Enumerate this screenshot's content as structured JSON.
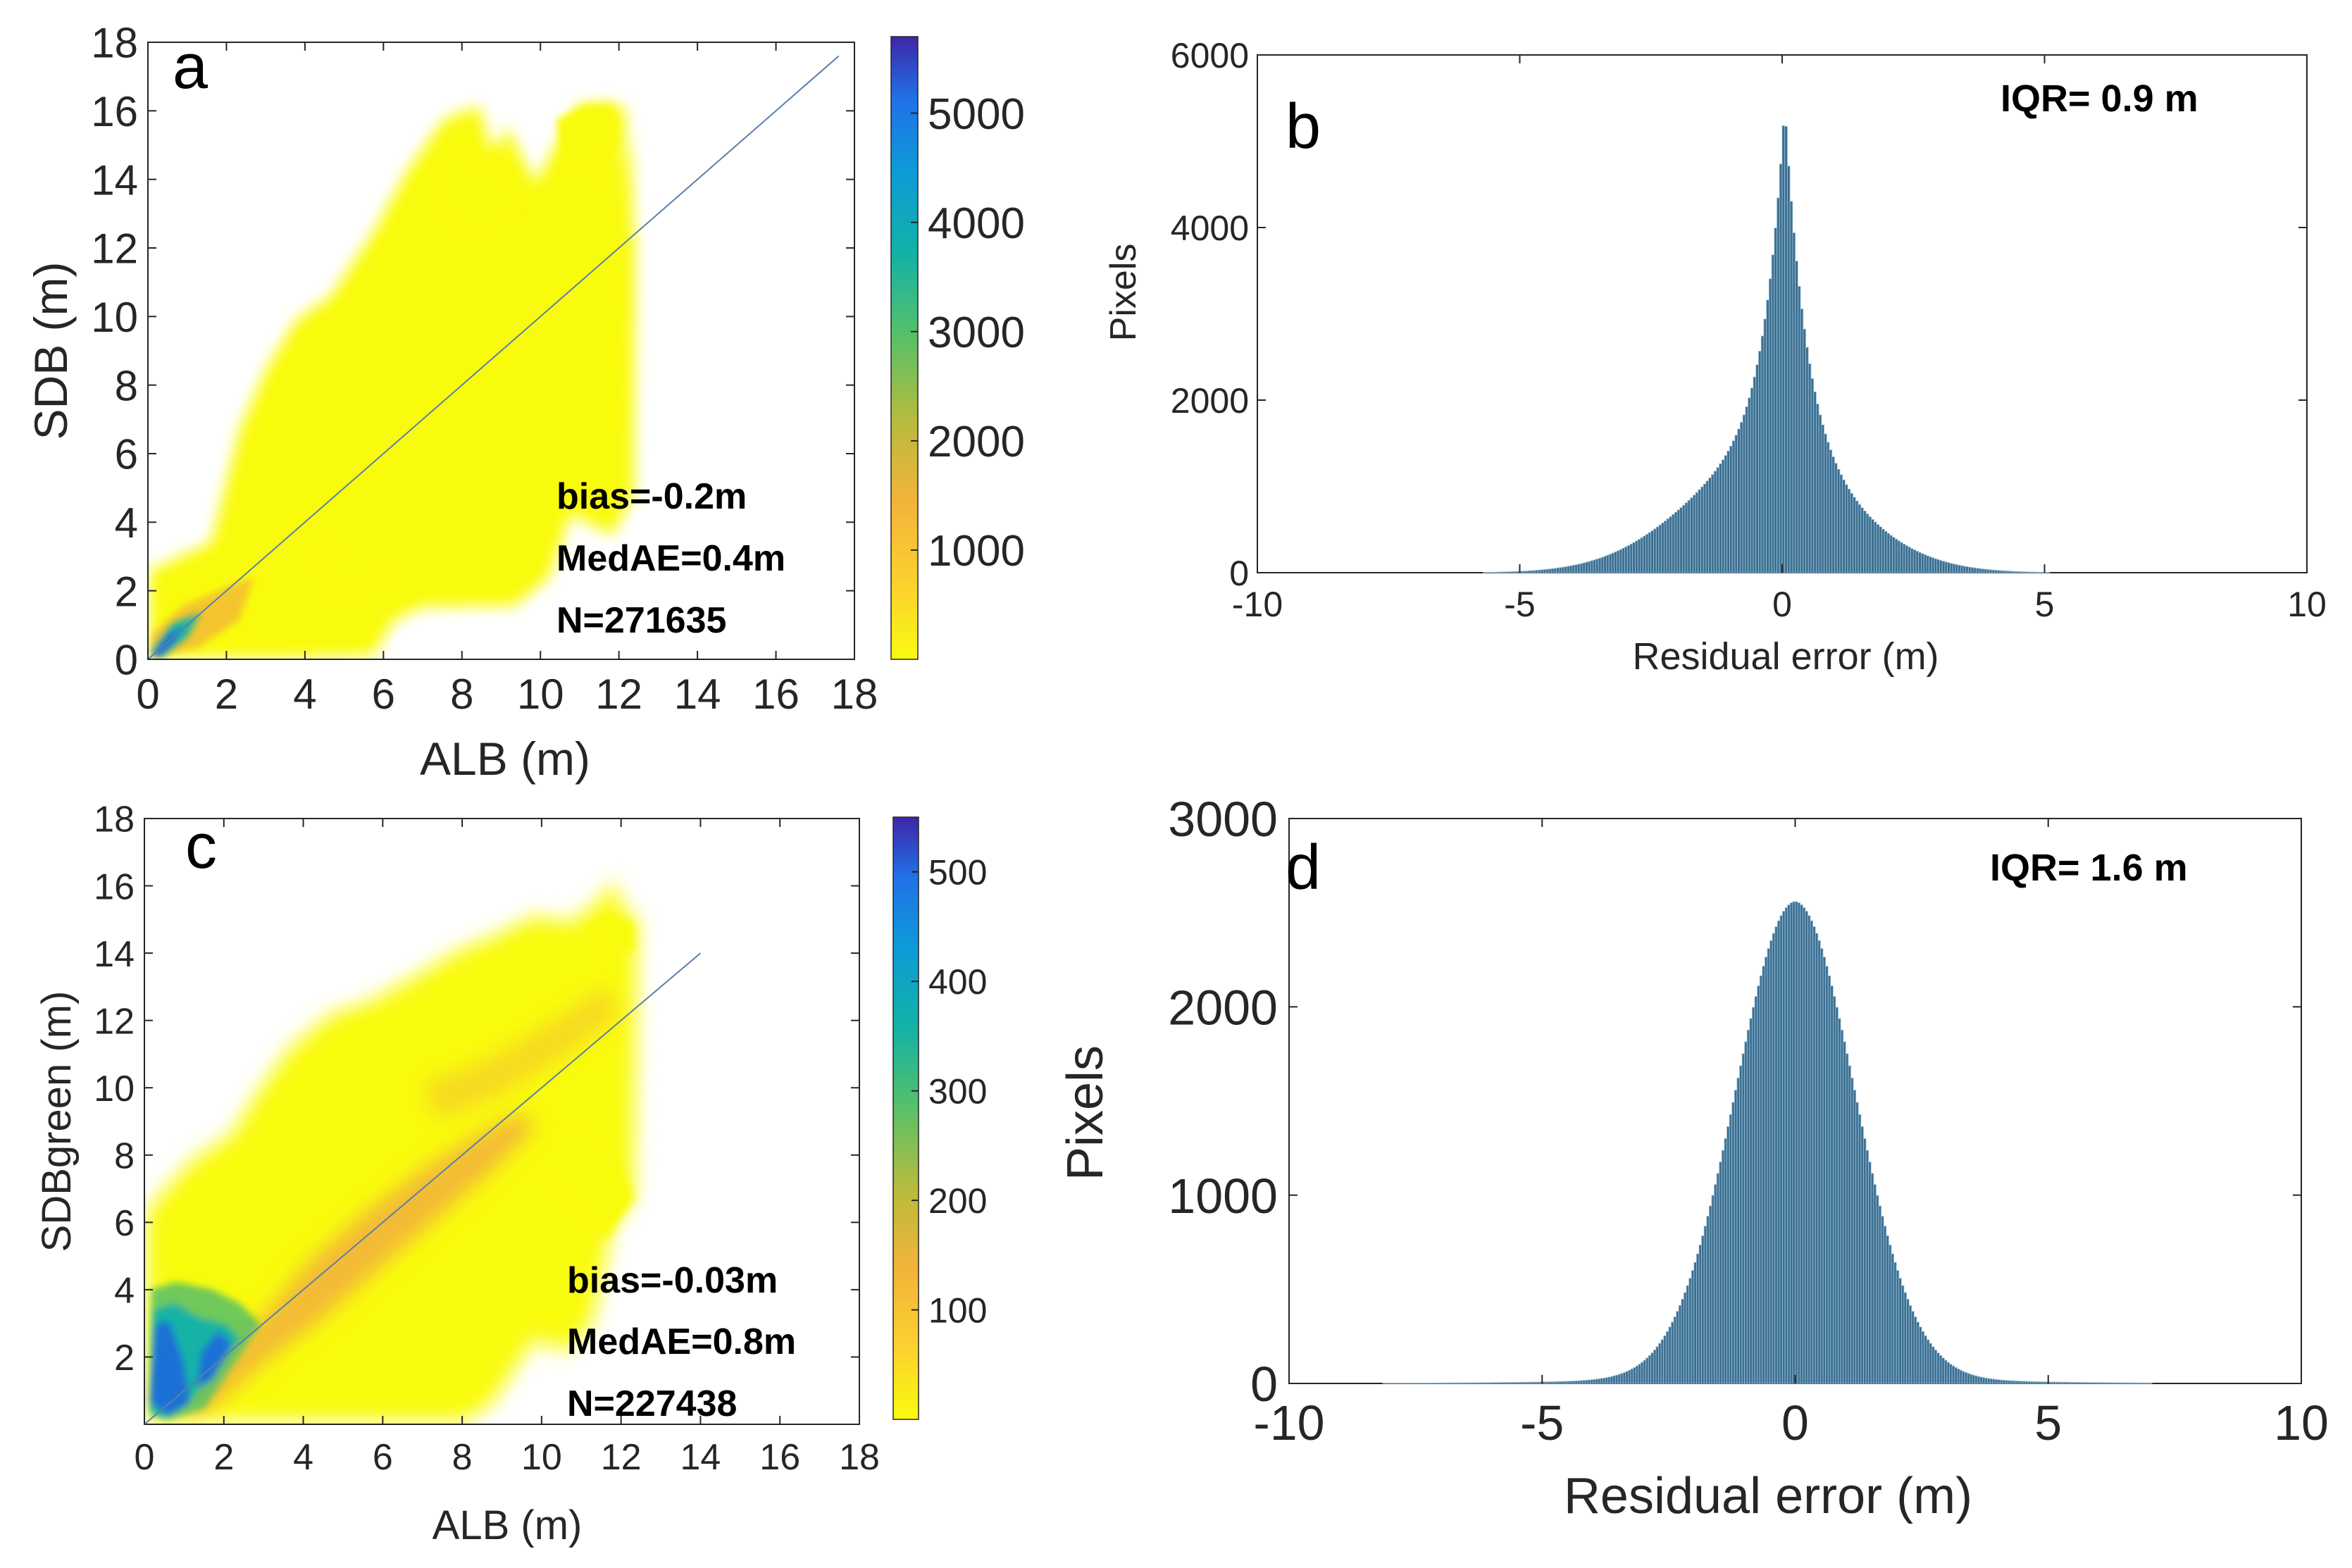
{
  "chart_data": [
    {
      "panel": "a",
      "type": "heatmap",
      "description": "Density scatter of SDB vs ALB",
      "xlabel": "ALB (m)",
      "ylabel": "SDB (m)",
      "xlim": [
        0,
        18
      ],
      "ylim": [
        0,
        18
      ],
      "xticks": [
        "0",
        "2",
        "4",
        "6",
        "8",
        "10",
        "12",
        "14",
        "16",
        "18"
      ],
      "yticks": [
        "0",
        "2",
        "4",
        "6",
        "8",
        "10",
        "12",
        "14",
        "16",
        "18"
      ],
      "colorbar": {
        "min": 0,
        "max": 5700,
        "ticks": [
          "1000",
          "2000",
          "3000",
          "4000",
          "5000"
        ]
      },
      "annotations": [
        "bias=-0.2m",
        "MedAE=0.4m",
        "N=271635"
      ],
      "stats": {
        "bias_m": -0.2,
        "medae_m": 0.4,
        "n": 271635
      },
      "reference_line": {
        "x": [
          0,
          17.6
        ],
        "y": [
          0,
          17.6
        ]
      }
    },
    {
      "panel": "b",
      "type": "bar",
      "description": "Histogram of residual error",
      "xlabel": "Residual error (m)",
      "ylabel": "Pixels",
      "xlim": [
        -10,
        10
      ],
      "ylim": [
        0,
        6000
      ],
      "xticks": [
        "-10",
        "-5",
        "0",
        "5",
        "10"
      ],
      "yticks": [
        "0",
        "2000",
        "4000",
        "6000"
      ],
      "annotation": "IQR= 0.9 m",
      "iqr_m": 0.9,
      "peak": {
        "x": 0.05,
        "y": 5450
      }
    },
    {
      "panel": "c",
      "type": "heatmap",
      "description": "Density scatter of SDBgreen vs ALB",
      "xlabel": "ALB (m)",
      "ylabel": "SDBgreen (m)",
      "xlim": [
        0,
        18
      ],
      "ylim": [
        0,
        18
      ],
      "xticks": [
        "0",
        "2",
        "4",
        "6",
        "8",
        "10",
        "12",
        "14",
        "16",
        "18"
      ],
      "yticks": [
        "2",
        "4",
        "6",
        "8",
        "10",
        "12",
        "14",
        "16",
        "18"
      ],
      "colorbar": {
        "min": 0,
        "max": 550,
        "ticks": [
          "100",
          "200",
          "300",
          "400",
          "500"
        ]
      },
      "annotations": [
        "bias=-0.03m",
        "MedAE=0.8m",
        "N=227438"
      ],
      "stats": {
        "bias_m": -0.03,
        "medae_m": 0.8,
        "n": 227438
      },
      "reference_line": {
        "x": [
          0,
          14
        ],
        "y": [
          0,
          14
        ]
      }
    },
    {
      "panel": "d",
      "type": "bar",
      "description": "Histogram of residual error",
      "xlabel": "Residual error (m)",
      "ylabel": "Pixels",
      "xlim": [
        -10,
        10
      ],
      "ylim": [
        0,
        3000
      ],
      "xticks": [
        "-10",
        "-5",
        "0",
        "5",
        "10"
      ],
      "yticks": [
        "0",
        "1000",
        "2000",
        "3000"
      ],
      "annotation": "IQR= 1.6 m",
      "iqr_m": 1.6,
      "peak": {
        "x": 0.0,
        "y": 2560
      }
    }
  ],
  "colors": {
    "scatter_low": "#f9fb0e",
    "scatter_mid": "#f2b13a",
    "scatter_high": "#1d6fd6",
    "hist_fill": "#3c6e8f",
    "hist_edge": "#9cc4de",
    "reference_line": "#5a7fa8"
  }
}
